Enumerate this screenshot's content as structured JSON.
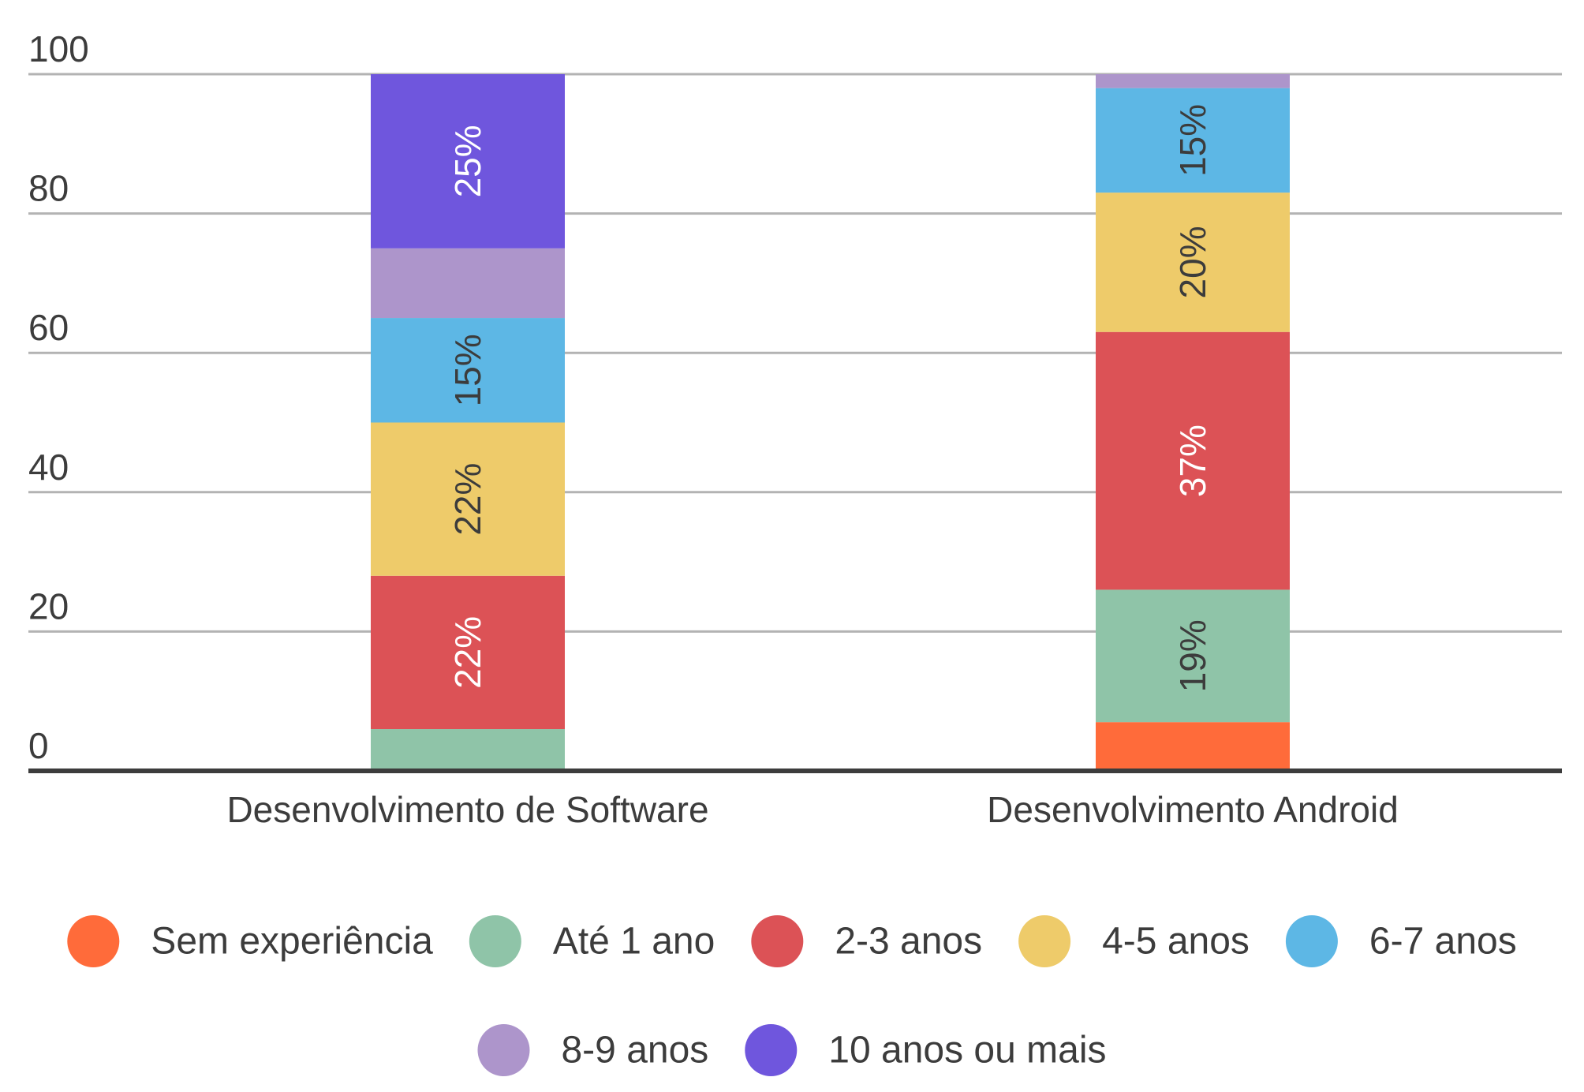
{
  "chart_data": {
    "type": "bar",
    "stacked": true,
    "title": "",
    "xlabel": "",
    "ylabel": "",
    "ylim": [
      0,
      100
    ],
    "yticks": [
      0,
      20,
      40,
      60,
      80,
      100
    ],
    "grid": true,
    "legend_position": "bottom",
    "categories": [
      "Desenvolvimento de Software",
      "Desenvolvimento Android"
    ],
    "series": [
      {
        "name": "Sem experiência",
        "color": "#FF6B3A",
        "values": [
          0,
          7
        ],
        "labels": [
          "",
          ""
        ],
        "label_color": "#ffffff"
      },
      {
        "name": "Até 1 ano",
        "color": "#8FC4A8",
        "values": [
          6,
          19
        ],
        "labels": [
          "",
          "19%"
        ],
        "label_color": "#3c3c3c"
      },
      {
        "name": "2-3 anos",
        "color": "#DC5256",
        "values": [
          22,
          37
        ],
        "labels": [
          "22%",
          "37%"
        ],
        "label_color": "#ffffff"
      },
      {
        "name": "4-5 anos",
        "color": "#EECB6A",
        "values": [
          22,
          20
        ],
        "labels": [
          "22%",
          "20%"
        ],
        "label_color": "#3c3c3c"
      },
      {
        "name": "6-7 anos",
        "color": "#5DB7E5",
        "values": [
          15,
          15
        ],
        "labels": [
          "15%",
          "15%"
        ],
        "label_color": "#3c3c3c"
      },
      {
        "name": "8-9 anos",
        "color": "#AD95CB",
        "values": [
          10,
          2
        ],
        "labels": [
          "",
          ""
        ],
        "label_color": "#3c3c3c"
      },
      {
        "name": "10 anos ou mais",
        "color": "#6F56DD",
        "values": [
          25,
          0
        ],
        "labels": [
          "25%",
          ""
        ],
        "label_color": "#ffffff"
      }
    ]
  }
}
